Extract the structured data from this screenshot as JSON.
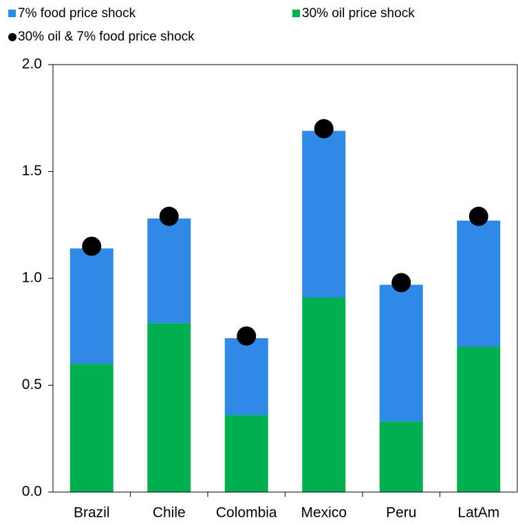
{
  "chart_data": {
    "type": "stacked-bar",
    "categories": [
      "Brazil",
      "Chile",
      "Colombia",
      "Mexico",
      "Peru",
      "LatAm"
    ],
    "series": [
      {
        "name": "7% food price shock",
        "color": "#2e8ae6",
        "values": [
          0.54,
          0.49,
          0.36,
          0.78,
          0.64,
          0.59
        ]
      },
      {
        "name": "30% oil price shock",
        "color": "#00b050",
        "values": [
          0.6,
          0.79,
          0.36,
          0.91,
          0.33,
          0.68
        ]
      }
    ],
    "points": {
      "name": "30% oil & 7% food price shock",
      "color": "#000000",
      "values": [
        1.15,
        1.29,
        0.73,
        1.7,
        0.98,
        1.29
      ]
    },
    "ylim": [
      0,
      2
    ],
    "yticks": [
      {
        "value": 0,
        "label": "0.0"
      },
      0.5,
      {
        "value": 1,
        "label": "1.0"
      },
      1.5,
      {
        "value": 2,
        "label": "2.0"
      }
    ]
  }
}
